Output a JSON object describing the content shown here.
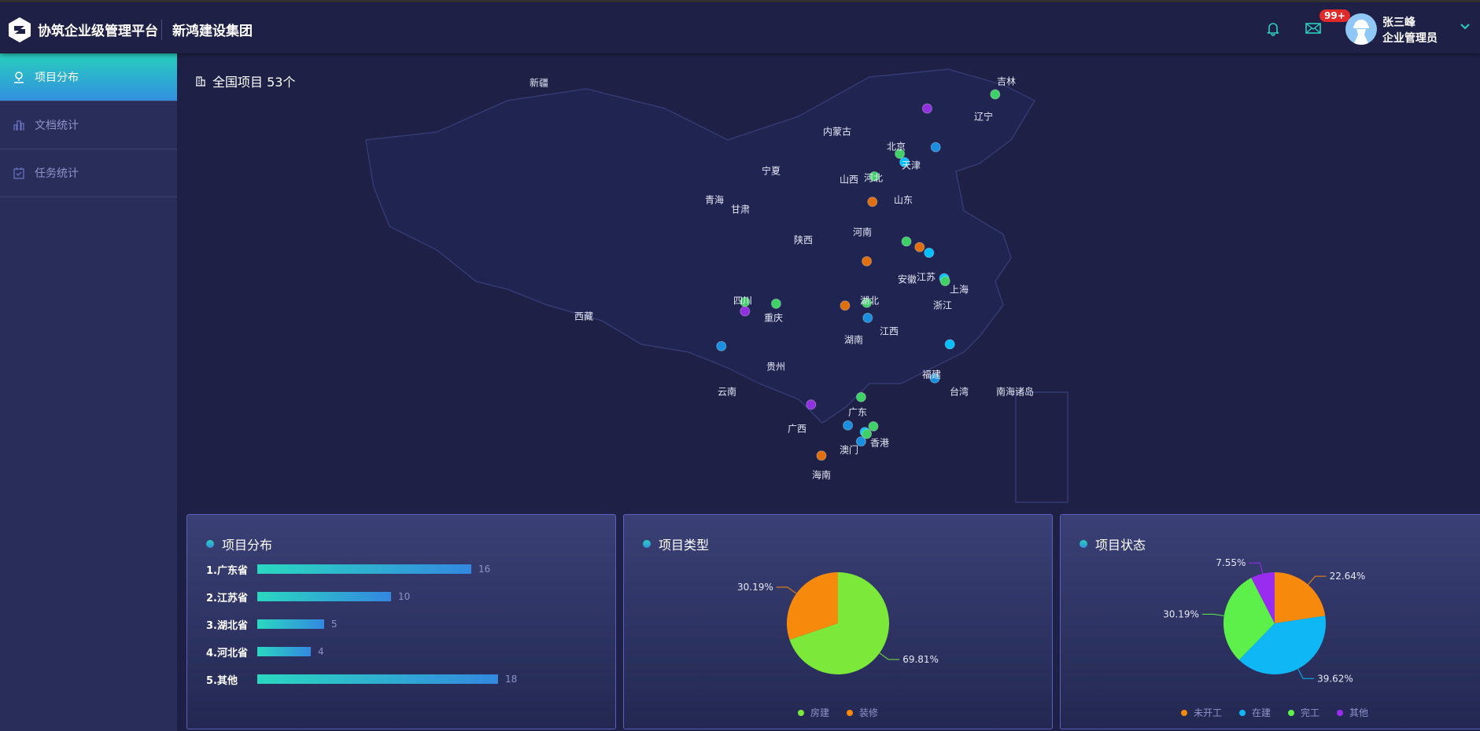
{
  "header": {
    "brand": "协筑企业级管理平台",
    "company": "新鸿建设集团",
    "badge": "99+",
    "user_name": "张三峰",
    "user_role": "企业管理员"
  },
  "sidebar": {
    "items": [
      {
        "label": "项目分布",
        "icon": "map-pin-icon",
        "active": true
      },
      {
        "label": "文档统计",
        "icon": "bar-chart-icon"
      },
      {
        "label": "任务统计",
        "icon": "calendar-check-icon"
      }
    ]
  },
  "map": {
    "title": "全国项目 53个",
    "provinces": [
      "新疆",
      "内蒙古",
      "吉林",
      "辽宁",
      "北京",
      "天津",
      "宁夏",
      "山西",
      "河北",
      "山东",
      "青海",
      "甘肃",
      "河南",
      "陕西",
      "安徽",
      "江苏",
      "上海",
      "西藏",
      "四川",
      "重庆",
      "湖北",
      "浙江",
      "江西",
      "湖南",
      "贵州",
      "福建",
      "台湾",
      "南海诸岛",
      "云南",
      "广东",
      "广西",
      "香港",
      "澳门",
      "海南"
    ]
  },
  "distribution": {
    "title": "项目分布",
    "rows": [
      {
        "label": "1.广东省",
        "value": 16
      },
      {
        "label": "2.江苏省",
        "value": 10
      },
      {
        "label": "3.湖北省",
        "value": 5
      },
      {
        "label": "4.河北省",
        "value": 4
      },
      {
        "label": "5.其他",
        "value": 18
      }
    ]
  },
  "chart_data": [
    {
      "type": "pie",
      "title": "项目类型",
      "slices": [
        {
          "name": "房建",
          "value": 69.81,
          "label": "69.81%",
          "color": "#7be83a"
        },
        {
          "name": "装修",
          "value": 30.19,
          "label": "30.19%",
          "color": "#f78a0c"
        }
      ]
    },
    {
      "type": "pie",
      "title": "项目状态",
      "slices": [
        {
          "name": "未开工",
          "value": 22.64,
          "label": "22.64%",
          "color": "#f78a0c"
        },
        {
          "name": "在建",
          "value": 39.62,
          "label": "39.62%",
          "color": "#0fb8f5"
        },
        {
          "name": "完工",
          "value": 30.19,
          "label": "30.19%",
          "color": "#5ef04a"
        },
        {
          "name": "其他",
          "value": 7.55,
          "label": "7.55%",
          "color": "#9a2cf0"
        }
      ]
    }
  ],
  "colors": {
    "accent": "#2ad0be",
    "green": "#3fd068",
    "blue": "#1a8fe0",
    "orange": "#e0700f",
    "purple": "#9030e0",
    "cyan": "#00c0ff"
  }
}
